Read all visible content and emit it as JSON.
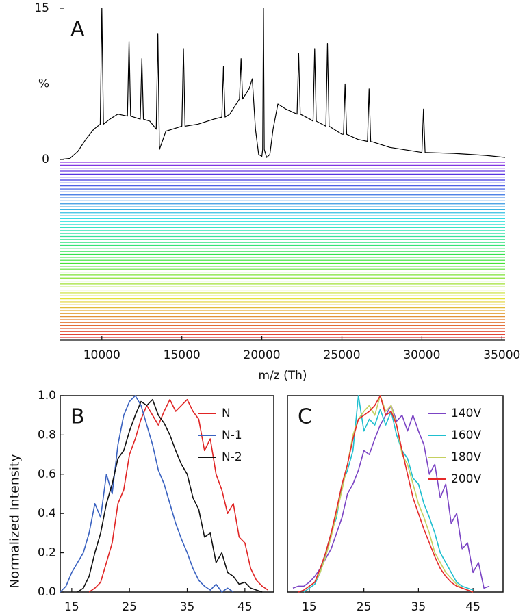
{
  "chart_data": [
    {
      "type": "line",
      "title": "A",
      "xlabel": "m/z (Th)",
      "ylabel": "%",
      "xlim": [
        7400,
        35200
      ],
      "xticks": [
        10000,
        15000,
        20000,
        25000,
        30000,
        35000
      ],
      "ylim": [
        0,
        15
      ],
      "yticks": [
        0,
        15
      ],
      "color": "#000000",
      "x": [
        7400,
        8000,
        8500,
        9000,
        9500,
        9900,
        10000,
        10100,
        10500,
        11000,
        11600,
        11700,
        11800,
        12400,
        12500,
        12600,
        13000,
        13400,
        13500,
        13600,
        14000,
        15000,
        15100,
        15200,
        16000,
        17000,
        17500,
        17600,
        17700,
        18000,
        18600,
        18700,
        18800,
        19200,
        19400,
        19600,
        19800,
        20000,
        20050,
        20100,
        20150,
        20300,
        20500,
        20700,
        21000,
        21500,
        22200,
        22300,
        22400,
        23000,
        23200,
        23300,
        23400,
        24000,
        24100,
        24200,
        25000,
        25100,
        25200,
        25300,
        26000,
        26600,
        26700,
        26800,
        28000,
        30000,
        30100,
        30200,
        32000,
        34000,
        35200
      ],
      "values": [
        0,
        0.1,
        0.8,
        2,
        3,
        3.5,
        15,
        3.5,
        4,
        4.5,
        4.3,
        11.7,
        4.3,
        4,
        10,
        4,
        3.8,
        3,
        12.5,
        1,
        2.8,
        3.3,
        11,
        3.3,
        3.5,
        4,
        4.2,
        9.2,
        4.2,
        4.5,
        6,
        10,
        6,
        7,
        8,
        3,
        0.5,
        0.3,
        1,
        15,
        1,
        0.2,
        0.5,
        3,
        5.5,
        5,
        4.5,
        10.5,
        4.5,
        4,
        3.8,
        11,
        3.8,
        3.3,
        11.5,
        3.3,
        2.5,
        2.5,
        7.5,
        2.5,
        2,
        1.8,
        7,
        1.8,
        1.2,
        0.7,
        5,
        0.7,
        0.6,
        0.4,
        0.2
      ]
    },
    {
      "type": "line",
      "title": "B",
      "ylabel": "Normalized Intensity",
      "xlim": [
        13,
        50
      ],
      "xticks": [
        15,
        25,
        35,
        45
      ],
      "ylim": [
        0,
        1
      ],
      "yticks": [
        {
          "value": 0,
          "label": "0.0"
        },
        {
          "value": 0.2,
          "label": "0.2"
        },
        {
          "value": 0.4,
          "label": "0.4"
        },
        {
          "value": 0.6,
          "label": "0.6"
        },
        {
          "value": 0.8,
          "label": "0.8"
        },
        {
          "value": 1,
          "label": "1.0"
        }
      ],
      "legend": "upper right",
      "x": [
        13,
        14,
        15,
        16,
        17,
        18,
        19,
        20,
        21,
        22,
        23,
        24,
        25,
        26,
        27,
        28,
        29,
        30,
        31,
        32,
        33,
        34,
        35,
        36,
        37,
        38,
        39,
        40,
        41,
        42,
        43,
        44,
        45,
        46,
        47,
        48,
        49
      ],
      "series": [
        {
          "name": "N",
          "color": "#e02424",
          "values": [
            null,
            null,
            null,
            null,
            null,
            0,
            0.02,
            0.05,
            0.15,
            0.25,
            0.45,
            0.52,
            0.7,
            0.78,
            0.88,
            0.95,
            0.9,
            0.85,
            0.92,
            0.98,
            0.92,
            0.95,
            0.98,
            0.92,
            0.88,
            0.72,
            0.78,
            0.6,
            0.52,
            0.4,
            0.45,
            0.28,
            0.25,
            0.12,
            0.06,
            0.03,
            0.01
          ]
        },
        {
          "name": "N-1",
          "color": "#3a62c0",
          "values": [
            0,
            0.03,
            0.1,
            0.15,
            0.2,
            0.3,
            0.45,
            0.38,
            0.6,
            0.5,
            0.75,
            0.9,
            0.97,
            1.0,
            0.95,
            0.85,
            0.75,
            0.62,
            0.55,
            0.45,
            0.35,
            0.27,
            0.2,
            0.12,
            0.06,
            0.03,
            0.01,
            0.04,
            0,
            0.02,
            0,
            null,
            null,
            null,
            null,
            null,
            null
          ]
        },
        {
          "name": "N-2",
          "color": "#111111",
          "values": [
            null,
            null,
            null,
            0,
            0.02,
            0.08,
            0.2,
            0.3,
            0.45,
            0.55,
            0.68,
            0.72,
            0.82,
            0.9,
            0.97,
            0.95,
            0.98,
            0.9,
            0.86,
            0.8,
            0.72,
            0.65,
            0.6,
            0.48,
            0.42,
            0.28,
            0.3,
            0.15,
            0.2,
            0.1,
            0.08,
            0.04,
            0.05,
            0.02,
            0.01,
            0,
            null
          ]
        }
      ]
    },
    {
      "type": "line",
      "title": "C",
      "xlim": [
        11,
        50.5
      ],
      "xticks": [
        15,
        25,
        35,
        45
      ],
      "ylim": [
        0,
        1
      ],
      "legend": "upper right",
      "x": [
        12,
        13,
        14,
        15,
        16,
        17,
        18,
        19,
        20,
        21,
        22,
        23,
        24,
        25,
        26,
        27,
        28,
        29,
        30,
        31,
        32,
        33,
        34,
        35,
        36,
        37,
        38,
        39,
        40,
        41,
        42,
        43,
        44,
        45,
        46,
        47,
        48
      ],
      "series": [
        {
          "name": "140V",
          "color": "#7b44c4",
          "values": [
            0.02,
            0.03,
            0.03,
            0.05,
            0.08,
            0.12,
            0.17,
            0.22,
            0.3,
            0.38,
            0.5,
            0.55,
            0.62,
            0.72,
            0.7,
            0.78,
            0.85,
            0.9,
            0.95,
            0.87,
            0.9,
            0.82,
            0.9,
            0.82,
            0.75,
            0.6,
            0.65,
            0.48,
            0.55,
            0.35,
            0.4,
            0.22,
            0.25,
            0.1,
            0.15,
            0.02,
            0.03
          ]
        },
        {
          "name": "160V",
          "color": "#1fbfcf",
          "values": [
            null,
            null,
            0,
            0.02,
            0.04,
            0.1,
            0.2,
            0.3,
            0.38,
            0.55,
            0.62,
            0.72,
            1.0,
            0.82,
            0.88,
            0.85,
            0.93,
            0.85,
            0.92,
            0.8,
            0.72,
            0.68,
            0.58,
            0.55,
            0.45,
            0.38,
            0.3,
            0.2,
            0.15,
            0.1,
            0.05,
            0.03,
            0.02,
            0.01,
            null,
            null,
            null
          ]
        },
        {
          "name": "180V",
          "color": "#c5d060",
          "values": [
            null,
            null,
            0.01,
            0.03,
            0.05,
            0.1,
            0.18,
            0.28,
            0.4,
            0.52,
            0.65,
            0.8,
            0.88,
            0.92,
            0.95,
            0.9,
            1.0,
            0.92,
            0.95,
            0.85,
            0.7,
            0.65,
            0.55,
            0.45,
            0.38,
            0.3,
            0.2,
            0.15,
            0.1,
            0.07,
            0.04,
            0.02,
            0.01,
            0,
            null,
            null,
            null
          ]
        },
        {
          "name": "200V",
          "color": "#e52a2a",
          "values": [
            null,
            0,
            0.01,
            0.03,
            0.05,
            0.12,
            0.2,
            0.3,
            0.42,
            0.55,
            0.65,
            0.78,
            0.88,
            0.9,
            0.92,
            0.95,
            1.0,
            0.9,
            0.92,
            0.85,
            0.72,
            0.6,
            0.48,
            0.4,
            0.32,
            0.25,
            0.18,
            0.12,
            0.08,
            0.05,
            0.03,
            0.02,
            0.01,
            0,
            null,
            null,
            null
          ]
        }
      ]
    }
  ]
}
